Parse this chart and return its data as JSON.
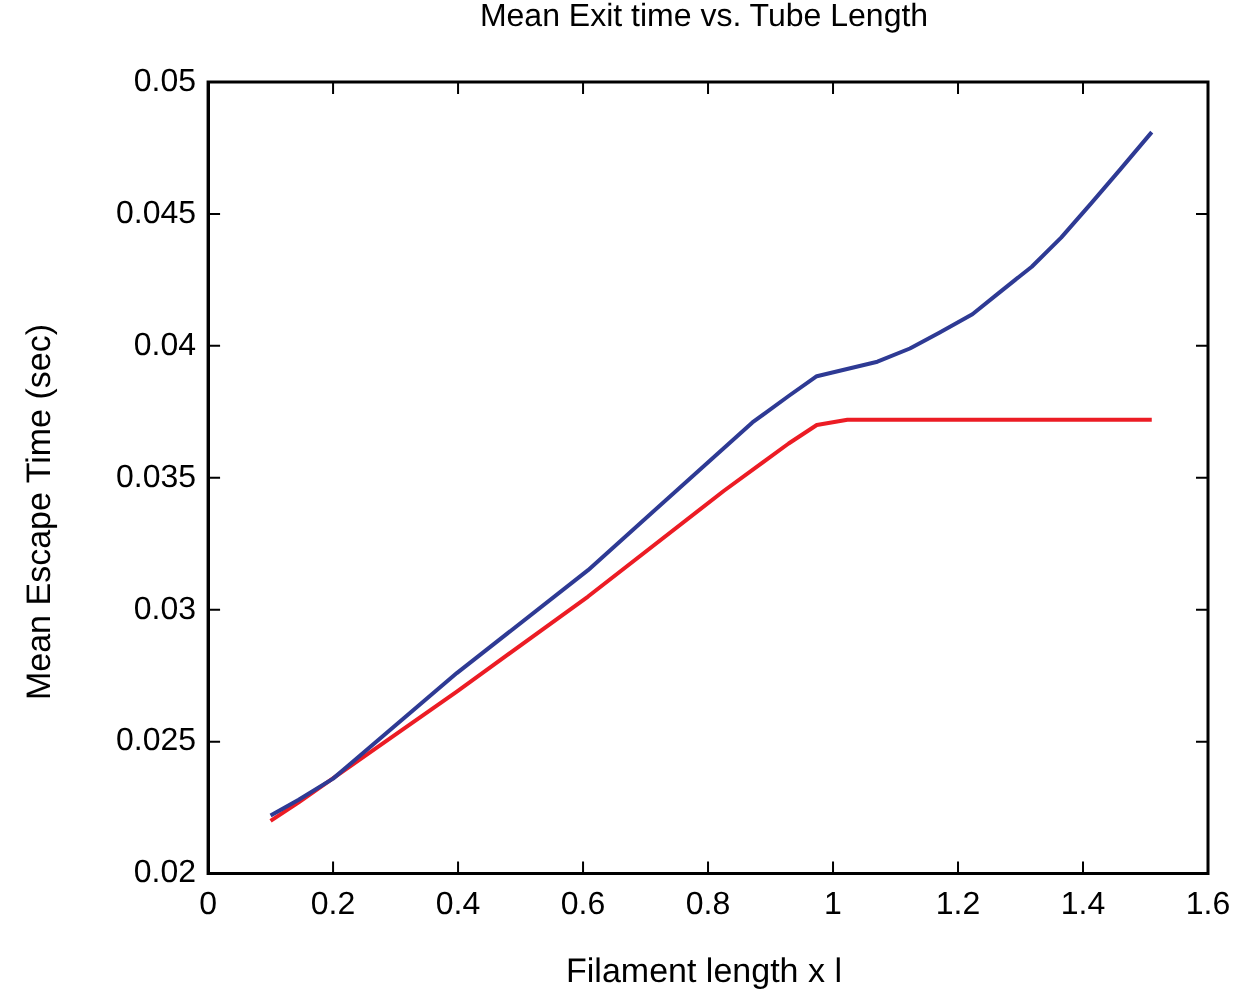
{
  "chart_data": {
    "type": "line",
    "title": "Mean Exit time vs. Tube Length",
    "xlabel": "Filament length x l",
    "ylabel": "Mean Escape Time (sec)",
    "xlim": [
      0,
      1.6
    ],
    "xticks": [
      0,
      0.2,
      0.4,
      0.6,
      0.8,
      1,
      1.2,
      1.4,
      1.6
    ],
    "ylim": [
      0.02,
      0.05
    ],
    "yticks": [
      0.02,
      0.025,
      0.03,
      0.035,
      0.04,
      0.045,
      0.05
    ],
    "grid": false,
    "legend": false,
    "series": [
      {
        "color": "#2e3a94",
        "x": [
          0.1,
          0.145,
          0.2,
          0.398,
          0.608,
          0.871,
          0.929,
          0.974,
          1.071,
          1.123,
          1.17,
          1.223,
          1.265,
          1.318,
          1.365,
          1.413,
          1.46,
          1.51
        ],
        "values": [
          0.0222,
          0.0228,
          0.0236,
          0.0276,
          0.0315,
          0.0371,
          0.0381,
          0.03885,
          0.0394,
          0.0399,
          0.0405,
          0.0412,
          0.042,
          0.043,
          0.0441,
          0.0454,
          0.0467,
          0.0481
        ]
      },
      {
        "color": "#ec1c24",
        "x": [
          0.1,
          0.145,
          0.398,
          0.608,
          0.825,
          0.929,
          0.974,
          1.023,
          1.51
        ],
        "values": [
          0.022,
          0.0227,
          0.0269,
          0.0305,
          0.0345,
          0.0363,
          0.037,
          0.0372,
          0.0372
        ]
      }
    ]
  }
}
